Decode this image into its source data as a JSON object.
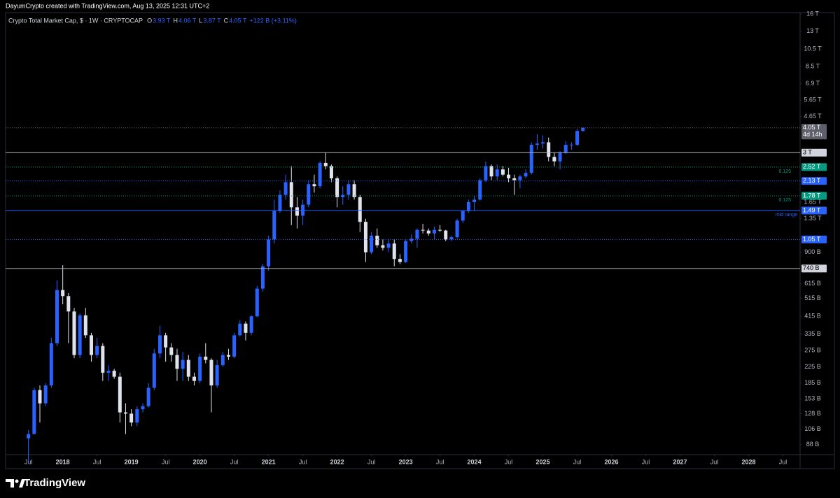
{
  "header": {
    "credit": "DayumCrypto created with TradingView.com, Aug 13, 2025 12:31 UTC+2",
    "symbol": "Crypto Total Market Cap, $ · 1W · CRYPTOCAP",
    "ohlc": [
      {
        "key": "O",
        "text": "3.93 T"
      },
      {
        "key": "H",
        "text": "4.06 T"
      },
      {
        "key": "L",
        "text": "3.87 T"
      },
      {
        "key": "C",
        "text": "4.05 T"
      }
    ],
    "change": "+122 B (+3.11%)"
  },
  "footer": {
    "brand": "TradingView"
  },
  "chart_data": {
    "type": "candlestick",
    "log_scale": true,
    "up_color": "#2962ff",
    "down_color": "#e0e3eb",
    "x": [
      "2017-07",
      "2017-08",
      "2017-09",
      "2017-10",
      "2017-11",
      "2017-12",
      "2018-01",
      "2018-02",
      "2018-03",
      "2018-04",
      "2018-05",
      "2018-06",
      "2018-07",
      "2018-08",
      "2018-09",
      "2018-10",
      "2018-11",
      "2018-12",
      "2019-01",
      "2019-02",
      "2019-03",
      "2019-04",
      "2019-05",
      "2019-06",
      "2019-07",
      "2019-08",
      "2019-09",
      "2019-10",
      "2019-11",
      "2019-12",
      "2020-01",
      "2020-02",
      "2020-03",
      "2020-04",
      "2020-05",
      "2020-06",
      "2020-07",
      "2020-08",
      "2020-09",
      "2020-10",
      "2020-11",
      "2020-12",
      "2021-01",
      "2021-02",
      "2021-03",
      "2021-04",
      "2021-05",
      "2021-06",
      "2021-07",
      "2021-08",
      "2021-09",
      "2021-10",
      "2021-11",
      "2021-12",
      "2022-01",
      "2022-02",
      "2022-03",
      "2022-04",
      "2022-05",
      "2022-06",
      "2022-07",
      "2022-08",
      "2022-09",
      "2022-10",
      "2022-11",
      "2022-12",
      "2023-01",
      "2023-02",
      "2023-03",
      "2023-04",
      "2023-05",
      "2023-06",
      "2023-07",
      "2023-08",
      "2023-09",
      "2023-10",
      "2023-11",
      "2023-12",
      "2024-01",
      "2024-02",
      "2024-03",
      "2024-04",
      "2024-05",
      "2024-06",
      "2024-07",
      "2024-08",
      "2024-09",
      "2024-10",
      "2024-11",
      "2024-12",
      "2025-01",
      "2025-02",
      "2025-03",
      "2025-04",
      "2025-05",
      "2025-06",
      "2025-07",
      "2025-08"
    ],
    "open": [
      95,
      100,
      170,
      145,
      180,
      300,
      570,
      530,
      440,
      260,
      420,
      330,
      260,
      290,
      210,
      215,
      200,
      130,
      128,
      115,
      135,
      140,
      175,
      265,
      330,
      285,
      260,
      220,
      245,
      200,
      190,
      255,
      245,
      180,
      230,
      260,
      255,
      330,
      380,
      340,
      415,
      580,
      760,
      1050,
      1480,
      1800,
      2100,
      1550,
      1400,
      1600,
      2050,
      2000,
      2650,
      2550,
      2200,
      1750,
      1800,
      2050,
      1750,
      1300,
      900,
      1100,
      980,
      950,
      1000,
      830,
      800,
      1030,
      1060,
      1180,
      1170,
      1130,
      1180,
      1170,
      1050,
      1080,
      1320,
      1480,
      1650,
      1700,
      2150,
      2550,
      2250,
      2450,
      2300,
      2200,
      2150,
      2250,
      2350,
      3300,
      3350,
      3400,
      2850,
      2700,
      3000,
      3300,
      3300,
      3900
    ],
    "high": [
      105,
      175,
      180,
      185,
      320,
      640,
      770,
      550,
      460,
      430,
      460,
      340,
      320,
      300,
      230,
      220,
      210,
      145,
      135,
      140,
      145,
      185,
      280,
      370,
      340,
      300,
      280,
      270,
      260,
      210,
      265,
      300,
      250,
      245,
      270,
      280,
      340,
      395,
      390,
      420,
      600,
      780,
      1100,
      1700,
      1900,
      2300,
      2550,
      1750,
      1700,
      2150,
      2300,
      2700,
      3000,
      2600,
      2250,
      2000,
      2150,
      2150,
      1800,
      1350,
      1150,
      1200,
      1050,
      1050,
      1050,
      880,
      1050,
      1120,
      1200,
      1270,
      1200,
      1230,
      1250,
      1180,
      1100,
      1350,
      1500,
      1700,
      1780,
      2200,
      2700,
      2600,
      2600,
      2550,
      2500,
      2300,
      2300,
      2450,
      3400,
      3750,
      3700,
      3600,
      3000,
      3050,
      3450,
      3400,
      4000,
      4060
    ],
    "low": [
      70,
      100,
      115,
      140,
      175,
      290,
      480,
      300,
      250,
      250,
      320,
      240,
      250,
      190,
      190,
      195,
      115,
      100,
      110,
      110,
      130,
      138,
      170,
      250,
      240,
      240,
      190,
      190,
      190,
      180,
      185,
      235,
      130,
      175,
      225,
      245,
      250,
      325,
      310,
      330,
      410,
      560,
      720,
      1000,
      1450,
      1700,
      1250,
      1200,
      1250,
      1550,
      1850,
      1950,
      2450,
      2100,
      1550,
      1600,
      1700,
      1700,
      1150,
      800,
      880,
      950,
      920,
      900,
      760,
      780,
      790,
      1000,
      950,
      1130,
      1100,
      1050,
      1150,
      1030,
      1030,
      1060,
      1280,
      1450,
      1480,
      1680,
      2100,
      2150,
      2150,
      2250,
      2100,
      1800,
      1950,
      2200,
      2300,
      3100,
      3150,
      2700,
      2550,
      2450,
      2950,
      3100,
      3250,
      3870
    ],
    "close": [
      100,
      170,
      145,
      180,
      300,
      570,
      530,
      440,
      260,
      420,
      330,
      260,
      290,
      210,
      215,
      200,
      130,
      128,
      115,
      135,
      140,
      175,
      265,
      330,
      285,
      260,
      220,
      245,
      200,
      190,
      255,
      245,
      180,
      230,
      260,
      255,
      330,
      380,
      340,
      415,
      580,
      760,
      1050,
      1480,
      1800,
      2100,
      1550,
      1400,
      1600,
      2050,
      2000,
      2650,
      2550,
      2200,
      1750,
      1800,
      2050,
      1750,
      1300,
      900,
      1100,
      980,
      950,
      1000,
      830,
      800,
      1030,
      1060,
      1180,
      1170,
      1130,
      1180,
      1170,
      1050,
      1080,
      1320,
      1480,
      1650,
      1700,
      2150,
      2550,
      2250,
      2450,
      2300,
      2200,
      2150,
      2250,
      2350,
      3300,
      3350,
      3400,
      2850,
      2700,
      3000,
      3300,
      3300,
      3900,
      4050
    ],
    "xlim": [
      "2017-03",
      "2028-10"
    ],
    "xticks": [
      {
        "value": "2017-07",
        "label": "Jul"
      },
      {
        "value": "2018-01",
        "label": "2018"
      },
      {
        "value": "2018-07",
        "label": "Jul"
      },
      {
        "value": "2019-01",
        "label": "2019"
      },
      {
        "value": "2019-07",
        "label": "Jul"
      },
      {
        "value": "2020-01",
        "label": "2020"
      },
      {
        "value": "2020-07",
        "label": "Jul"
      },
      {
        "value": "2021-01",
        "label": "2021"
      },
      {
        "value": "2021-07",
        "label": "Jul"
      },
      {
        "value": "2022-01",
        "label": "2022"
      },
      {
        "value": "2022-07",
        "label": "Jul"
      },
      {
        "value": "2023-01",
        "label": "2023"
      },
      {
        "value": "2023-07",
        "label": "Jul"
      },
      {
        "value": "2024-01",
        "label": "2024"
      },
      {
        "value": "2024-07",
        "label": "Jul"
      },
      {
        "value": "2025-01",
        "label": "2025"
      },
      {
        "value": "2025-07",
        "label": "Jul"
      },
      {
        "value": "2026-01",
        "label": "2026"
      },
      {
        "value": "2026-07",
        "label": "Jul"
      },
      {
        "value": "2027-01",
        "label": "2027"
      },
      {
        "value": "2027-07",
        "label": "Jul"
      },
      {
        "value": "2028-01",
        "label": "2028"
      },
      {
        "value": "2028-07",
        "label": "Jul"
      }
    ],
    "ylim": [
      78,
      16300
    ],
    "yticks": [
      {
        "value": 16000,
        "label": "16 T"
      },
      {
        "value": 13000,
        "label": "13 T"
      },
      {
        "value": 10500,
        "label": "10.5 T"
      },
      {
        "value": 8500,
        "label": "8.5 T"
      },
      {
        "value": 6900,
        "label": "6.9 T"
      },
      {
        "value": 5650,
        "label": "5.65 T"
      },
      {
        "value": 4650,
        "label": "4.65 T"
      },
      {
        "value": 1650,
        "label": "1.65 T"
      },
      {
        "value": 1350,
        "label": "1.35 T"
      },
      {
        "value": 900,
        "label": "900 B"
      },
      {
        "value": 615,
        "label": "615 B"
      },
      {
        "value": 515,
        "label": "515 B"
      },
      {
        "value": 415,
        "label": "415 B"
      },
      {
        "value": 335,
        "label": "335 B"
      },
      {
        "value": 275,
        "label": "275 B"
      },
      {
        "value": 225,
        "label": "225 B"
      },
      {
        "value": 185,
        "label": "185 B"
      },
      {
        "value": 153,
        "label": "153 B"
      },
      {
        "value": 128,
        "label": "128 B"
      },
      {
        "value": 106,
        "label": "106 B"
      },
      {
        "value": 88,
        "label": "88 B"
      }
    ],
    "levels": [
      {
        "value": 4050,
        "label": "4.05 T",
        "line_color": "#5d606b",
        "box_color": "#5d606b",
        "text_color": "#ffffff",
        "style": "dotted",
        "countdown": "4d 14h"
      },
      {
        "value": 3000,
        "label": "3 T",
        "line_color": "#b2b5be",
        "box_color": "#d1d4dc",
        "text_color": "#000000",
        "style": "solid"
      },
      {
        "value": 2520,
        "label": "2.52 T",
        "line_color": "#089981",
        "box_color": "#089981",
        "text_color": "#ffffff",
        "style": "dotted"
      },
      {
        "value": 2130,
        "label": "2.13 T",
        "line_color": "#2962ff",
        "box_color": "#2962ff",
        "text_color": "#ffffff",
        "style": "dotted"
      },
      {
        "value": 1780,
        "label": "1.78 T",
        "line_color": "#089981",
        "box_color": "#089981",
        "text_color": "#ffffff",
        "style": "dotted"
      },
      {
        "value": 1490,
        "label": "1.49 T",
        "line_color": "#2962ff",
        "box_color": "#2962ff",
        "text_color": "#ffffff",
        "style": "solid"
      },
      {
        "value": 1050,
        "label": "1.05 T",
        "line_color": "#2962ff",
        "box_color": "#2962ff",
        "text_color": "#ffffff",
        "style": "dotted"
      },
      {
        "value": 740,
        "label": "740 B",
        "line_color": "#b2b5be",
        "box_color": "#d1d4dc",
        "text_color": "#000000",
        "style": "solid"
      }
    ],
    "annotations": [
      "0.125",
      "0.125",
      "mid range"
    ]
  }
}
